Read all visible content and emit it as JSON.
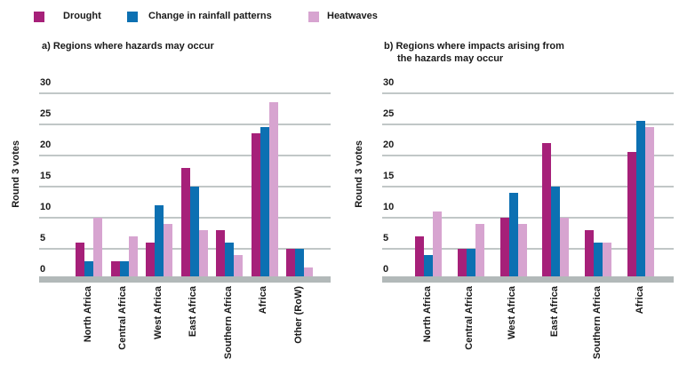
{
  "legend": {
    "items": [
      {
        "label": "Drought",
        "color": "#A62079"
      },
      {
        "label": "Change in rainfall patterns",
        "color": "#0C70B2"
      },
      {
        "label": "Heatwaves",
        "color": "#D7A4D0"
      }
    ]
  },
  "colors": {
    "drought": "#A62079",
    "rainfall": "#0C70B2",
    "heatwaves": "#D7A4D0",
    "gridline": "#C1C7C7",
    "axis_bar": "#B2B9B9",
    "text": "#1A1A1A"
  },
  "chart_data": {
    "type": "bar",
    "ylabel": "Round 3 votes",
    "ylim": [
      0,
      30
    ],
    "yticks": [
      0,
      5,
      10,
      15,
      20,
      25,
      30
    ],
    "grid": true,
    "legend_position": "top",
    "series_names": [
      "Drought",
      "Change in rainfall patterns",
      "Heatwaves"
    ],
    "charts": [
      {
        "title_lines": [
          "a) Regions where hazards may occur"
        ],
        "categories": [
          "North Africa",
          "Central Africa",
          "West Africa",
          "East Africa",
          "Southern Africa",
          "Africa",
          "Other (RoW)"
        ],
        "series": [
          {
            "name": "Drought",
            "values": [
              6,
              3,
              6,
              18,
              8,
              23.5,
              5
            ]
          },
          {
            "name": "Change in rainfall patterns",
            "values": [
              3,
              3,
              12,
              15,
              6,
              24.5,
              5
            ]
          },
          {
            "name": "Heatwaves",
            "values": [
              10,
              7,
              9,
              8,
              4,
              28.5,
              2
            ]
          }
        ]
      },
      {
        "title_lines": [
          "b) Regions where impacts arising from",
          "the hazards may occur"
        ],
        "categories": [
          "North Africa",
          "Central Africa",
          "West Africa",
          "East Africa",
          "Southern Africa",
          "Africa"
        ],
        "series": [
          {
            "name": "Drought",
            "values": [
              7,
              5,
              10,
              22,
              8,
              20.5
            ]
          },
          {
            "name": "Change in rainfall patterns",
            "values": [
              4,
              5,
              14,
              15,
              6,
              25.5
            ]
          },
          {
            "name": "Heatwaves",
            "values": [
              11,
              9,
              9,
              10,
              6,
              24.5
            ]
          }
        ]
      }
    ]
  }
}
